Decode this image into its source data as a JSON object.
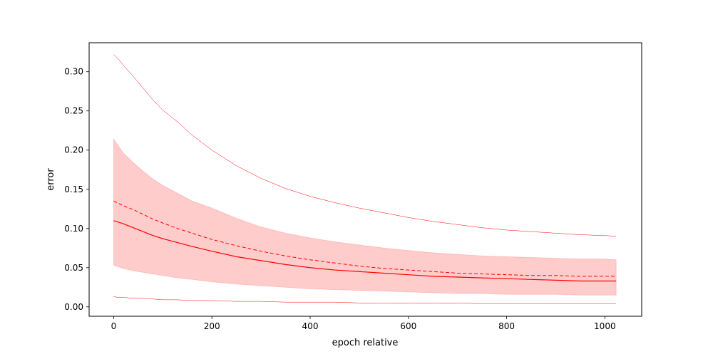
{
  "chart_data": {
    "type": "line",
    "title": "",
    "xlabel": "epoch relative",
    "ylabel": "error",
    "xlim": [
      -50,
      1075
    ],
    "ylim": [
      -0.012,
      0.337
    ],
    "grid": false,
    "legend": "none",
    "x_ticks": [
      0,
      200,
      400,
      600,
      800,
      1000
    ],
    "x_tick_labels": [
      "0",
      "200",
      "400",
      "600",
      "800",
      "1000"
    ],
    "y_ticks": [
      0.0,
      0.05,
      0.1,
      0.15,
      0.2,
      0.25,
      0.3
    ],
    "y_tick_labels": [
      "0.00",
      "0.05",
      "0.10",
      "0.15",
      "0.20",
      "0.25",
      "0.30"
    ],
    "x": [
      0,
      10,
      20,
      40,
      60,
      80,
      100,
      130,
      160,
      200,
      250,
      300,
      350,
      400,
      450,
      500,
      550,
      600,
      650,
      700,
      750,
      800,
      850,
      900,
      950,
      1000,
      1023
    ],
    "band": {
      "color": "#ff0000",
      "opacity": 0.2,
      "lower": [
        0.053,
        0.051,
        0.049,
        0.046,
        0.044,
        0.042,
        0.04,
        0.037,
        0.035,
        0.032,
        0.029,
        0.027,
        0.025,
        0.023,
        0.022,
        0.021,
        0.02,
        0.019,
        0.018,
        0.017,
        0.017,
        0.016,
        0.016,
        0.016,
        0.015,
        0.015,
        0.015
      ],
      "upper": [
        0.214,
        0.205,
        0.196,
        0.184,
        0.173,
        0.163,
        0.155,
        0.145,
        0.135,
        0.126,
        0.113,
        0.102,
        0.094,
        0.088,
        0.083,
        0.079,
        0.075,
        0.072,
        0.069,
        0.067,
        0.065,
        0.064,
        0.063,
        0.062,
        0.061,
        0.061,
        0.06
      ]
    },
    "series": [
      {
        "style": "solid",
        "color": "#ff0000",
        "width": 1.2,
        "values": [
          0.11,
          0.108,
          0.106,
          0.101,
          0.096,
          0.091,
          0.087,
          0.082,
          0.077,
          0.071,
          0.064,
          0.059,
          0.054,
          0.05,
          0.047,
          0.045,
          0.043,
          0.041,
          0.039,
          0.038,
          0.037,
          0.036,
          0.035,
          0.034,
          0.033,
          0.033,
          0.033
        ]
      },
      {
        "style": "dashed",
        "color": "#ff0000",
        "width": 1.0,
        "values": [
          0.135,
          0.132,
          0.129,
          0.124,
          0.118,
          0.112,
          0.107,
          0.1,
          0.094,
          0.086,
          0.078,
          0.071,
          0.065,
          0.06,
          0.056,
          0.052,
          0.049,
          0.047,
          0.045,
          0.043,
          0.042,
          0.041,
          0.04,
          0.04,
          0.039,
          0.039,
          0.039
        ]
      },
      {
        "style": "thin",
        "color": "#ff0000",
        "width": 0.5,
        "values": [
          0.322,
          0.316,
          0.308,
          0.294,
          0.279,
          0.264,
          0.251,
          0.236,
          0.219,
          0.2,
          0.18,
          0.164,
          0.151,
          0.141,
          0.133,
          0.126,
          0.12,
          0.114,
          0.109,
          0.105,
          0.101,
          0.098,
          0.096,
          0.094,
          0.092,
          0.091,
          0.09
        ]
      },
      {
        "style": "thin",
        "color": "#ff0000",
        "width": 0.5,
        "values": [
          0.013,
          0.012,
          0.012,
          0.011,
          0.011,
          0.01,
          0.009,
          0.009,
          0.008,
          0.008,
          0.007,
          0.007,
          0.006,
          0.006,
          0.006,
          0.005,
          0.005,
          0.005,
          0.005,
          0.005,
          0.004,
          0.004,
          0.004,
          0.004,
          0.004,
          0.004,
          0.004
        ]
      }
    ]
  }
}
